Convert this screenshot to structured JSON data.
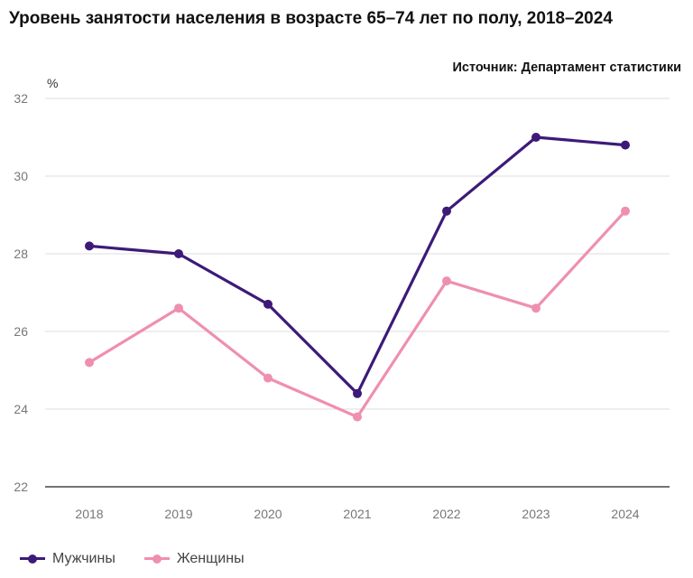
{
  "title": "Уровень занятости населения в возрасте 65–74 лет по полу, 2018–2024",
  "source": "Источник: Департамент статистики",
  "chart_data": {
    "type": "line",
    "title": "Уровень занятости населения в возрасте 65–74 лет по полу, 2018–2024",
    "ylabel": "%",
    "xlabel": "",
    "categories": [
      "2018",
      "2019",
      "2020",
      "2021",
      "2022",
      "2023",
      "2024"
    ],
    "ylim": [
      22,
      32
    ],
    "yticks": [
      "22",
      "24",
      "26",
      "28",
      "30",
      "32"
    ],
    "grid": "horizontal",
    "legend": "bottom-left",
    "series": [
      {
        "name": "Мужчины",
        "color": "#3d1a78",
        "values": [
          28.2,
          28.0,
          26.7,
          24.4,
          29.1,
          31.0,
          30.8
        ]
      },
      {
        "name": "Женщины",
        "color": "#ef8fb0",
        "values": [
          25.2,
          26.6,
          24.8,
          23.8,
          27.3,
          26.6,
          29.1
        ]
      }
    ]
  }
}
